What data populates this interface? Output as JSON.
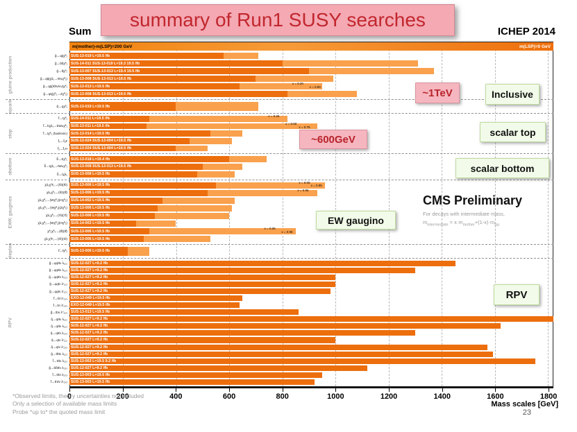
{
  "slide": {
    "title_fragment": "Sum",
    "banner": "summary of Run1 SUSY searches",
    "conference": "ICHEP 2014",
    "page_number": "23",
    "footnotes": [
      "*Observed limits, theory uncertainties not included",
      "Only a selection of available mass limits",
      "Probe *up to* the quoted mass limit"
    ],
    "callouts": {
      "one_tev": "~1TeV",
      "inclusive": "Inclusive",
      "six_hundred": "~600GeV",
      "scalar_top": "scalar top",
      "scalar_bottom": "scalar bottom",
      "ew_gaugino": "EW gaugino",
      "rpv": "RPV"
    },
    "cms": {
      "title": "CMS Preliminary",
      "note1": "For decays with intermediate mass,",
      "f1": "m",
      "f1s": "intermediate",
      "f2": " = x·m",
      "f2s": "mother",
      "f3": "+(1-x)·m",
      "f3s": "lsp"
    }
  },
  "chart_data": {
    "type": "bar",
    "orientation": "horizontal",
    "title": "Summary of CMS SUSY results (mass limits)",
    "xlabel": "Mass scales [GeV]",
    "xlim": [
      0,
      1818
    ],
    "xticks": [
      0,
      200,
      400,
      600,
      800,
      1000,
      1200,
      1400,
      1600,
      1800
    ],
    "grid": "dashed-vertical",
    "legend": {
      "left": "m(mother)-m(LSP)=200 GeV",
      "right": "m(LSP)=0 GeV"
    },
    "colors": {
      "dark": "#ED6E0D",
      "light": "#F9A14D"
    },
    "groups": [
      {
        "name": "gluino production",
        "rows": [
          {
            "label": "SUS-13-019 L=19.5 /fb",
            "decay": "g̃→qq̄χ̃⁰₁",
            "dark": 580,
            "light": 710
          },
          {
            "label": "SUS-14-011 SUS-13-019 L=19.3 19.5 /fb",
            "decay": "g̃→bb̄χ̃⁰₁",
            "dark": 800,
            "light": 1310
          },
          {
            "label": "SUS-13-007 SUS-13-013 L=19.4 19.5 /fb",
            "decay": "g̃→tt̄χ̃⁰₁",
            "dark": 900,
            "light": 1370
          },
          {
            "label": "SUS-13-008 SUS-13-013 L=19.5 /fb",
            "decay": "g̃→qq̄(χ̃±₁→W±χ̃⁰₁)",
            "dark": 700,
            "light": 990
          },
          {
            "label": "SUS-13-013 L=19.5 /fb",
            "decay": "g̃→qq̄(ℓℓ/ℓν/νν)χ̃⁰₁",
            "dark": 640,
            "light": 950,
            "markers": [
              {
                "label": "x = 0.20",
                "gev": 880
              },
              {
                "label": "x = 0.50",
                "gev": 945
              }
            ]
          },
          {
            "label": "SUS-13-008 SUS-13-013 L=19.5 /fb",
            "decay": "g̃→qq̄(χ̃⁰₂→Zχ̃⁰₁)",
            "dark": 820,
            "light": 1080
          }
        ]
      },
      {
        "name": "squark",
        "rows": [
          {
            "label": "SUS-13-019 L=19.5 /fb",
            "decay": "q̃→qχ̃⁰₁",
            "dark": 400,
            "light": 710
          }
        ]
      },
      {
        "name": "stop",
        "rows": [
          {
            "label": "SUS-14-011 L=19.5 /fb",
            "decay": "t̃→tχ̃⁰₁",
            "dark": 300,
            "light": 820,
            "markers": [
              {
                "label": "x = 0.25",
                "gev": 790
              }
            ]
          },
          {
            "label": "SUS-13-011 L=19.5 /fb",
            "decay": "t̃→bχ̃±₁→bW±χ̃⁰₁",
            "dark": 290,
            "light": 930,
            "markers": [
              {
                "label": "x = 0.50",
                "gev": 855
              },
              {
                "label": "x = 0.75",
                "gev": 905
              }
            ]
          },
          {
            "label": "SUS-13-014 L=19.5 /fb",
            "decay": "t̃→tχ̃⁰₁ (hadronic)",
            "dark": 530,
            "light": 650
          },
          {
            "label": "SUS-13-024 SUS-13-004 L=19.5 /fb",
            "decay": "t̃₂→t̃₁Z",
            "dark": 450,
            "light": 610
          },
          {
            "label": "SUS-13-024 SUS-13-004 L=19.5 /fb",
            "decay": "t̃₂→t̃₁H",
            "dark": 400,
            "light": 520
          }
        ]
      },
      {
        "name": "sbottom",
        "rows": [
          {
            "label": "SUS-13-018 L=19.4 /fb",
            "decay": "b̃→bχ̃⁰₁",
            "dark": 600,
            "light": 740
          },
          {
            "label": "SUS-13-008 SUS-13-013 L=19.5 /fb",
            "decay": "b̃→tχ̃±₁→tW±χ̃⁰₁",
            "dark": 500,
            "light": 650
          },
          {
            "label": "SUS-13-008 L=19.5 /fb",
            "decay": "b̃→tχ̃±₁",
            "dark": 480,
            "light": 620
          }
        ]
      },
      {
        "name": "EWK gauginos",
        "rows": [
          {
            "label": "SUS-13-006 L=19.5 /fb",
            "decay": "χ̃±₁χ̃∓₁→(ℓ̃ν)(ℓ̃ν)",
            "dark": 550,
            "light": 960,
            "markers": [
              {
                "label": "x = 0.05",
                "gev": 905
              },
              {
                "label": "x = 0.95",
                "gev": 950
              }
            ]
          },
          {
            "label": "SUS-13-006 L=19.5 /fb",
            "decay": "χ̃±₁χ̃⁰₂→(ℓ̃ν)(ℓ̃ℓ)",
            "dark": 520,
            "light": 930,
            "markers": [
              {
                "label": "x = 0.95",
                "gev": 900
              }
            ]
          },
          {
            "label": "SUS-14-002 L=19.5 /fb",
            "decay": "χ̃±₁χ̃⁰₂→(Wχ̃⁰₁)(Hχ̃⁰₁)",
            "dark": 350,
            "light": 620
          },
          {
            "label": "SUS-13-006 L=19.5 /fb",
            "decay": "χ̃±₁χ̃⁰₂→(Wχ̃⁰₁)(Zχ̃⁰₁)",
            "dark": 330,
            "light": 610
          },
          {
            "label": "SUS-13-006 L=19.5 /fb",
            "decay": "χ̃±₁χ̃⁰₂→(τ̃ν)(τ̃τ)",
            "dark": 320,
            "light": 600
          },
          {
            "label": "SUS-14-002 L=19.5 /fb",
            "decay": "χ̃±₁χ̃⁰₂→(Wχ̃⁰₁)(Hχ̃⁰₁)",
            "dark": 250,
            "light": 400
          },
          {
            "label": "SUS-13-006 L=19.5 /fb",
            "decay": "χ̃⁰₂χ̃⁰₃→(ℓ̃ℓ)(ℓ̃ℓ)",
            "dark": 300,
            "light": 850,
            "markers": [
              {
                "label": "x = 0.05",
                "gev": 775
              },
              {
                "label": "x = 0.95",
                "gev": 840
              }
            ]
          },
          {
            "label": "SUS-13-006 L=19.5 /fb",
            "decay": "χ̃±₁χ̃∓₁→(τ̃ν)(τ̃ν)",
            "dark": 280,
            "light": 530
          }
        ]
      },
      {
        "name": "slepton",
        "rows": [
          {
            "label": "SUS-13-006 L=19.5 /fb",
            "decay": "ℓ̃→ℓχ̃⁰₁",
            "dark": 220,
            "light": 300
          }
        ]
      },
      {
        "name": "RPV",
        "rows": [
          {
            "label": "SUS-12-027 L=9.2 /fb",
            "decay": "g̃→qqℓℓν λ₁₂₂",
            "dark": 1450,
            "light": 1450
          },
          {
            "label": "SUS-12-027 L=9.2 /fb",
            "decay": "g̃→qqℓℓν λ₁₂₃",
            "dark": 1300,
            "light": 1300
          },
          {
            "label": "SUS-12-027 L=9.2 /fb",
            "decay": "g̃→qqℓℓν λ₂₃₃",
            "dark": 1000,
            "light": 1000
          },
          {
            "label": "SUS-12-027 L=9.2 /fb",
            "decay": "g̃→qqℓν λ'₁₂₂",
            "dark": 1000,
            "light": 1000
          },
          {
            "label": "SUS-12-027 L=9.2 /fb",
            "decay": "g̃→qqℓν λ'₁₂₃",
            "dark": 980,
            "light": 980
          },
          {
            "label": "EXO-12-049 L=19.5 /fb",
            "decay": "t̃→bℓ λ'₂₃₃",
            "dark": 650,
            "light": 650
          },
          {
            "label": "EXO-12-049 L=19.5 /fb",
            "decay": "t̃→bτ λ'₃₃₃",
            "dark": 640,
            "light": 640
          },
          {
            "label": "SUS-13-013 L=19.5 /fb",
            "decay": "g̃→tbs λ''₃₂₃",
            "dark": 860,
            "light": 860
          },
          {
            "label": "SUS-12-027 L=9.2 /fb",
            "decay": "q̃→qℓℓν λ₁₂₂",
            "dark": 1820,
            "light": 1820
          },
          {
            "label": "SUS-12-027 L=9.2 /fb",
            "decay": "q̃→qℓℓν λ₁₂₃",
            "dark": 1620,
            "light": 1620
          },
          {
            "label": "SUS-12-027 L=9.2 /fb",
            "decay": "q̃→qℓℓν λ₂₃₃",
            "dark": 1300,
            "light": 1300
          },
          {
            "label": "SUS-12-027 L=9.2 /fb",
            "decay": "q̃→qℓν λ'₁₂₂",
            "dark": 1000,
            "light": 1000
          },
          {
            "label": "SUS-12-027 L=9.2 /fb",
            "decay": "q̃→qℓν λ'₂₃₃",
            "dark": 1570,
            "light": 1570
          },
          {
            "label": "SUS-12-027 L=9.2 /fb",
            "decay": "g̃→tt̄ℓℓν λ₁₂₂",
            "dark": 1590,
            "light": 1590
          },
          {
            "label": "SUS-13-003 L=19.5 9.2 /fb",
            "decay": "t̃→tℓℓν λ₁₂₂",
            "dark": 1750,
            "light": 1750
          },
          {
            "label": "SUS-12-027 L=9.2 /fb",
            "decay": "g̃→bb̄ℓℓν λ₂₃₃",
            "dark": 1120,
            "light": 1120
          },
          {
            "label": "SUS-13-003 L=19.5 /fb",
            "decay": "t̃→tℓℓν λ₂₃₃",
            "dark": 950,
            "light": 950
          },
          {
            "label": "SUS-13-003 L=19.5 /fb",
            "decay": "t̃→bτℓν λ'₃₃₃",
            "dark": 920,
            "light": 920
          }
        ]
      }
    ]
  }
}
